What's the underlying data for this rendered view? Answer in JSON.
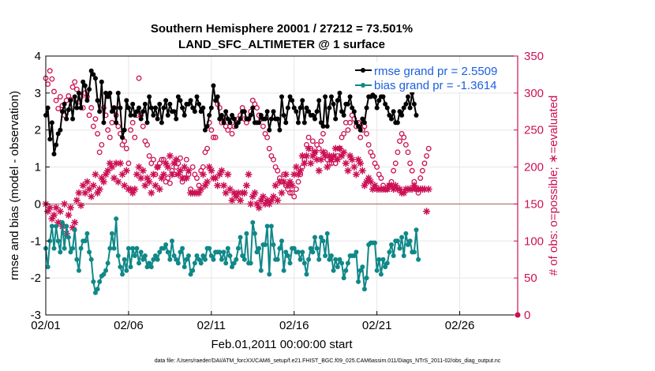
{
  "colors": {
    "rmse": "#000000",
    "bias": "#108888",
    "obs": "#cc1155",
    "zero_line": "#b07070",
    "legend_text": "#1a5fe0",
    "right_axis": "#cc1155"
  },
  "chart_data": {
    "type": "line",
    "title": "Southern Hemisphere 20001 / 27212 = 73.501%",
    "subtitle": "LAND_SFC_ALTIMETER @ 1 surface",
    "xlabel": "Feb.01,2011 00:00:00 start",
    "ylabel_left": "rmse and bias (model - observation)",
    "ylabel_right": "# of obs: o=possible; ∗=evaluated",
    "footnote": "data file: /Users/raeder/DAI/ATM_forcXX/CAM6_setup/f.e21.FHIST_BGC.f09_025.CAM6assim.011/Diags_NTrS_2011-02/obs_diag_output.nc",
    "xlim": [
      1,
      29.5
    ],
    "ylim_left": [
      -3,
      4
    ],
    "ylim_right": [
      0,
      350
    ],
    "x_ticks": [
      "02/01",
      "02/06",
      "02/11",
      "02/16",
      "02/21",
      "02/26"
    ],
    "y_ticks_left": [
      "-3",
      "-2",
      "-1",
      "0",
      "1",
      "2",
      "3",
      "4"
    ],
    "y_ticks_right": [
      "0",
      "50",
      "100",
      "150",
      "200",
      "250",
      "300",
      "350"
    ],
    "grid": true,
    "legend_placement": "top-right",
    "series": [
      {
        "name": "rmse grand pr = 2.5509",
        "axis": "left",
        "marker": "dot",
        "values": [
          2.4,
          2.6,
          1.75,
          2.2,
          1.35,
          1.6,
          1.9,
          2.0,
          2.5,
          2.7,
          2.3,
          2.55,
          2.8,
          2.3,
          2.9,
          2.6,
          3.0,
          2.6,
          3.3,
          3.2,
          2.8,
          3.1,
          3.6,
          3.5,
          3.4,
          2.8,
          2.5,
          3.3,
          2.2,
          3.0,
          2.9,
          3.0,
          2.5,
          2.6,
          2.2,
          3.0,
          2.6,
          1.8,
          2.0,
          2.8,
          2.6,
          2.4,
          2.7,
          2.4,
          2.5,
          2.6,
          2.3,
          2.5,
          2.7,
          2.2,
          2.9,
          2.6,
          2.4,
          2.6,
          2.3,
          2.7,
          2.2,
          2.6,
          2.8,
          2.4,
          2.7,
          2.5,
          2.5,
          2.3,
          2.9,
          2.8,
          2.6,
          2.4,
          2.7,
          2.7,
          2.8,
          2.6,
          2.5,
          2.9,
          2.7,
          2.5,
          2.6,
          2.0,
          2.1,
          2.4,
          2.6,
          3.2,
          2.8,
          2.9,
          2.3,
          2.4,
          2.2,
          2.5,
          2.3,
          2.2,
          2.4,
          2.3,
          2.1,
          2.2,
          2.3,
          2.5,
          2.5,
          2.3,
          2.3,
          2.4,
          2.6,
          2.2,
          2.2,
          2.2,
          2.4,
          2.3,
          2.3,
          2.5,
          2.0,
          2.3,
          2.5,
          2.3,
          2.3,
          2.0,
          2.9,
          2.4,
          2.2,
          2.6,
          2.9,
          2.8,
          2.6,
          2.5,
          2.2,
          2.6,
          2.8,
          2.2,
          2.6,
          2.5,
          2.4,
          2.4,
          2.3,
          2.5,
          2.8,
          2.2,
          2.1,
          2.9,
          2.1,
          2.6,
          2.9,
          2.7,
          2.3,
          2.8,
          3.0,
          2.5,
          2.4,
          2.7,
          2.7,
          2.9,
          2.6,
          2.5,
          2.2,
          2.1,
          2.0,
          2.3,
          2.2,
          2.6,
          2.9,
          2.9,
          2.95,
          2.9,
          2.6,
          2.8,
          2.9,
          2.9,
          2.7,
          2.6,
          2.4,
          2.3,
          2.5,
          2.2,
          2.2,
          2.5,
          2.4,
          2.6,
          2.7,
          2.9,
          2.6,
          3.0,
          2.7,
          2.4
        ]
      },
      {
        "name": "bias grand pr = -1.3614",
        "axis": "left",
        "marker": "dot",
        "values": [
          -1.2,
          -1.7,
          -1.0,
          -0.6,
          -1.2,
          -0.6,
          -1.0,
          -1.3,
          -0.5,
          -1.2,
          -0.6,
          -0.9,
          -1.3,
          -1.2,
          -0.7,
          -1.5,
          -1.8,
          -1.2,
          -1.0,
          -1.0,
          -0.8,
          -1.3,
          -1.5,
          -2.1,
          -2.4,
          -2.3,
          -2.1,
          -1.95,
          -1.9,
          -1.8,
          -1.6,
          -1.2,
          -0.8,
          -1.2,
          -0.4,
          -1.4,
          -1.7,
          -1.9,
          -1.5,
          -1.8,
          -1.2,
          -1.7,
          -1.2,
          -1.4,
          -1.2,
          -1.6,
          -1.3,
          -1.5,
          -1.4,
          -1.7,
          -1.6,
          -1.7,
          -1.5,
          -1.4,
          -1.5,
          -1.3,
          -1.2,
          -1.2,
          -1.1,
          -1.3,
          -1.5,
          -1.0,
          -1.4,
          -1.5,
          -1.6,
          -1.3,
          -1.2,
          -1.7,
          -1.5,
          -1.4,
          -1.9,
          -1.8,
          -1.6,
          -1.4,
          -1.5,
          -1.6,
          -1.4,
          -1.5,
          -1.2,
          -1.2,
          -1.4,
          -1.5,
          -1.3,
          -1.3,
          -1.3,
          -1.5,
          -1.3,
          -1.6,
          -1.2,
          -1.4,
          -1.7,
          -1.6,
          -1.5,
          -1.2,
          -0.9,
          -1.4,
          -1.5,
          -0.8,
          -1.6,
          -1.6,
          -0.5,
          -0.8,
          -1.3,
          -1.2,
          -1.8,
          -1.1,
          -1.1,
          -0.6,
          -1.9,
          -0.6,
          -1.1,
          -1.5,
          -1.5,
          -1.2,
          -1.0,
          -1.8,
          -1.3,
          -1.4,
          -1.6,
          -1.2,
          -1.2,
          -1.3,
          -1.3,
          -1.5,
          -1.3,
          -1.6,
          -1.9,
          -1.5,
          -1.2,
          -1.3,
          -0.9,
          -1.2,
          -1.5,
          -0.9,
          -1.0,
          -1.4,
          -0.8,
          -1.5,
          -1.4,
          -1.8,
          -1.5,
          -1.7,
          -1.5,
          -1.6,
          -2.0,
          -1.8,
          -1.6,
          -1.4,
          -1.4,
          -1.4,
          -1.3,
          -2.1,
          -1.8,
          -1.7,
          -2.3,
          -2.0,
          -1.1,
          -1.05,
          -1.05,
          -1.05,
          -1.8,
          -1.5,
          -1.9,
          -1.5,
          -1.7,
          -1.6,
          -1.3,
          -1.1,
          -1.4,
          -1.0,
          -1.0,
          -1.2,
          -0.9,
          -1.4,
          -0.8,
          -1.1,
          -1.0,
          -1.3,
          -1.3,
          -0.7,
          -1.5
        ]
      },
      {
        "name": "possible",
        "axis": "right",
        "marker": "circle",
        "values": [
          320,
          312,
          330,
          319,
          302,
          290,
          279,
          295,
          283,
          270,
          290,
          296,
          291,
          308,
          315,
          305,
          288,
          295,
          280,
          300,
          295,
          270,
          280,
          255,
          265,
          245,
          220,
          230,
          280,
          270,
          250,
          240,
          260,
          280,
          270,
          255,
          245,
          230,
          235,
          225,
          205,
          250,
          260,
          240,
          270,
          320,
          270,
          255,
          235,
          230,
          215,
          205,
          210,
          190,
          200,
          205,
          210,
          210,
          180,
          185,
          178,
          195,
          190,
          200,
          205,
          212,
          180,
          185,
          210,
          190,
          170,
          200,
          190,
          185,
          175,
          195,
          200,
          220,
          225,
          260,
          250,
          240,
          240,
          285,
          280,
          260,
          265,
          255,
          250,
          255,
          245,
          255,
          260,
          265,
          270,
          280,
          265,
          260,
          265,
          275,
          290,
          285,
          280,
          270,
          265,
          255,
          245,
          240,
          225,
          215,
          210,
          200,
          195,
          185,
          180,
          190,
          175,
          170,
          165,
          165,
          160,
          170,
          180,
          190,
          200,
          210,
          230,
          240,
          225,
          235,
          220,
          230,
          225,
          235,
          245,
          220,
          210,
          205,
          205,
          210,
          205,
          215,
          225,
          240,
          245,
          260,
          250,
          260,
          270,
          265,
          255,
          260,
          240,
          250,
          255,
          245,
          230,
          220,
          215,
          205,
          200,
          190,
          185,
          175,
          170,
          170,
          175,
          180,
          195,
          205,
          220,
          235,
          245,
          240,
          230,
          220,
          205,
          195,
          180,
          170,
          165,
          185,
          195,
          205,
          215,
          225
        ]
      },
      {
        "name": "evaluated",
        "axis": "right",
        "marker": "star",
        "values": [
          150,
          140,
          145,
          130,
          135,
          145,
          125,
          140,
          120,
          150,
          110,
          135,
          145,
          118,
          125,
          155,
          165,
          148,
          175,
          165,
          180,
          170,
          160,
          175,
          190,
          165,
          170,
          185,
          180,
          190,
          195,
          205,
          200,
          185,
          205,
          180,
          205,
          190,
          175,
          195,
          170,
          170,
          165,
          170,
          190,
          200,
          185,
          195,
          175,
          185,
          180,
          165,
          190,
          175,
          200,
          170,
          185,
          190,
          205,
          200,
          215,
          190,
          205,
          210,
          190,
          195,
          185,
          200,
          185,
          195,
          165,
          165,
          165,
          165,
          165,
          170,
          190,
          175,
          180,
          200,
          195,
          185,
          185,
          175,
          190,
          195,
          175,
          165,
          190,
          170,
          155,
          165,
          160,
          165,
          155,
          165,
          165,
          175,
          190,
          150,
          160,
          165,
          150,
          145,
          155,
          160,
          150,
          155,
          150,
          155,
          160,
          175,
          155,
          180,
          165,
          180,
          190,
          175,
          180,
          175,
          190,
          200,
          190,
          195,
          215,
          205,
          215,
          225,
          205,
          215,
          220,
          210,
          195,
          210,
          220,
          215,
          200,
          215,
          210,
          215,
          225,
          210,
          225,
          215,
          220,
          205,
          195,
          215,
          210,
          200,
          190,
          210,
          205,
          195,
          175,
          180,
          185,
          180,
          170,
          175,
          170,
          170,
          170,
          170,
          170,
          170,
          175,
          175,
          170,
          175,
          170,
          170,
          165,
          165,
          170,
          170,
          170,
          170,
          175,
          170,
          170,
          170,
          170,
          170,
          140,
          170
        ]
      }
    ],
    "final_point_right": 0
  }
}
